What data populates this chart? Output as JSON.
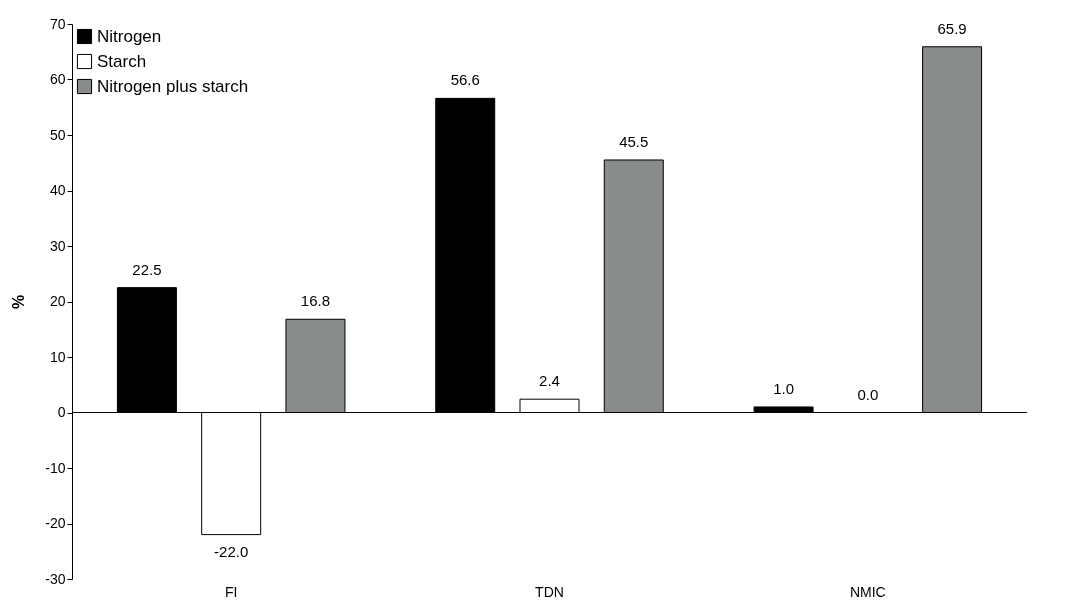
{
  "chart_data": {
    "type": "bar",
    "ylabel": "%",
    "categories": [
      "FI",
      "TDN",
      "NMIC"
    ],
    "series": [
      {
        "name": "Nitrogen",
        "color": "#000000",
        "values": [
          22.5,
          56.6,
          1.0
        ],
        "value_labels": [
          "22.5",
          "56.6",
          "1.0"
        ]
      },
      {
        "name": "Starch",
        "color": "#ffffff",
        "values": [
          -22.0,
          2.4,
          0.0
        ],
        "value_labels": [
          "-22.0",
          "2.4",
          "0.0"
        ]
      },
      {
        "name": "Nitrogen plus starch",
        "color": "#898c8c",
        "values": [
          16.8,
          45.5,
          65.9
        ],
        "value_labels": [
          "16.8",
          "45.5",
          "65.9"
        ]
      }
    ],
    "ylim": [
      -30,
      70
    ],
    "yticks": [
      -30,
      -20,
      -10,
      0,
      10,
      20,
      30,
      40,
      50,
      60,
      70
    ],
    "legend": "top left"
  }
}
